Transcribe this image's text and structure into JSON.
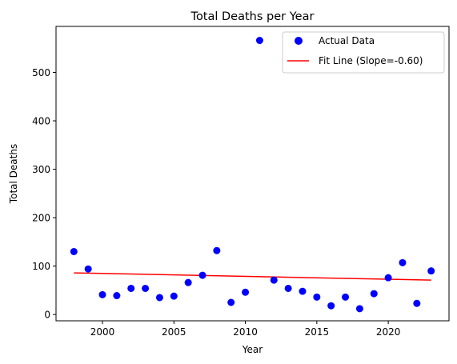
{
  "chart_data": {
    "type": "scatter",
    "title": "Total Deaths per Year",
    "xlabel": "Year",
    "ylabel": "Total Deaths",
    "xlim": [
      1996.75,
      2024.25
    ],
    "ylim": [
      -13,
      595
    ],
    "xticks": [
      2000,
      2005,
      2010,
      2015,
      2020
    ],
    "yticks": [
      0,
      100,
      200,
      300,
      400,
      500
    ],
    "grid": false,
    "legend_position": "top-right",
    "series": [
      {
        "name": "Actual Data",
        "kind": "scatter",
        "color": "#0000ff",
        "x": [
          1998,
          1999,
          2000,
          2001,
          2002,
          2003,
          2004,
          2005,
          2006,
          2007,
          2008,
          2009,
          2010,
          2011,
          2012,
          2013,
          2014,
          2015,
          2016,
          2017,
          2018,
          2019,
          2020,
          2021,
          2022,
          2023
        ],
        "y": [
          130,
          94,
          41,
          39,
          54,
          54,
          35,
          38,
          66,
          81,
          132,
          25,
          46,
          566,
          71,
          54,
          48,
          36,
          18,
          36,
          12,
          43,
          76,
          107,
          23,
          90
        ]
      },
      {
        "name": "Fit Line (Slope=-0.60)",
        "kind": "line",
        "color": "#ff0000",
        "x": [
          1998,
          2023
        ],
        "y": [
          86,
          71
        ]
      }
    ]
  }
}
